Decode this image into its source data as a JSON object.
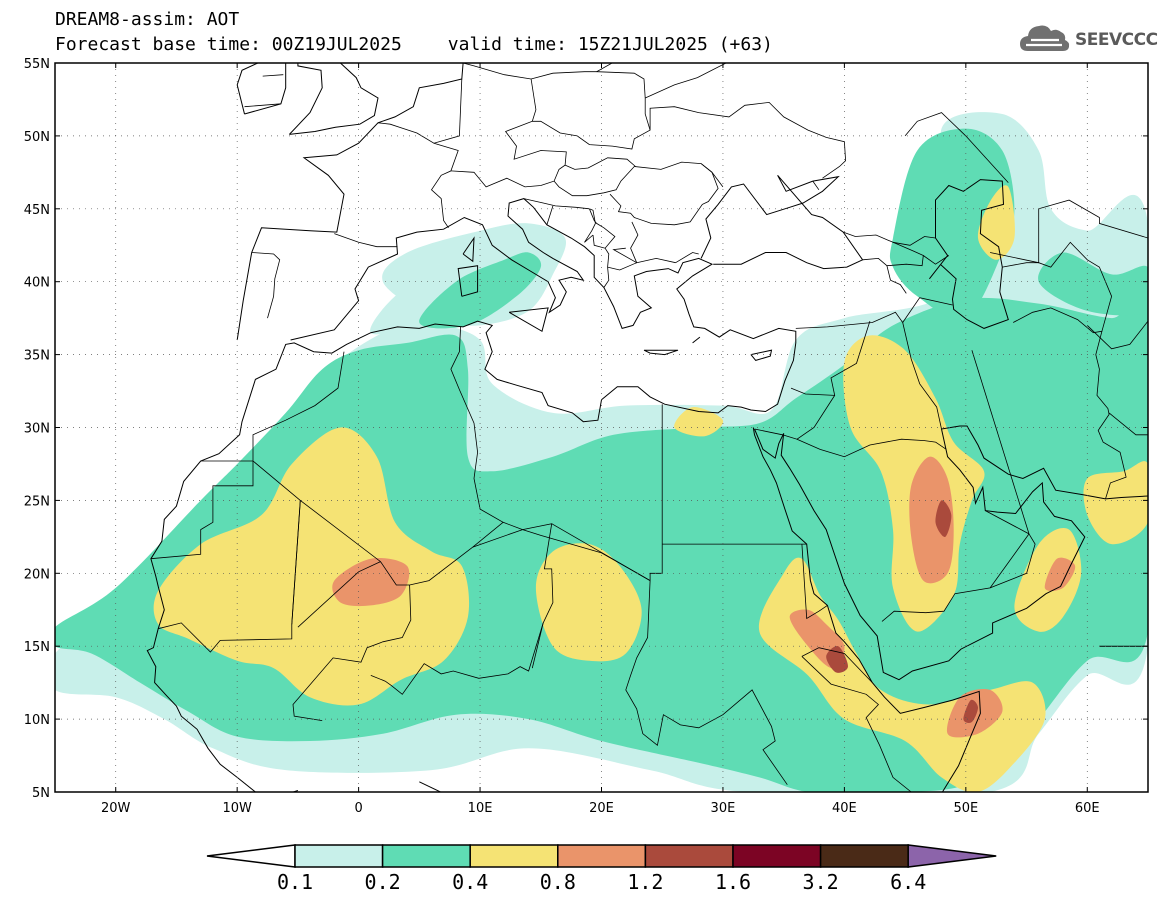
{
  "header": {
    "line1": "DREAM8-assim: AOT",
    "base_time": "Forecast base time: 00Z19JUL2025",
    "valid_time": "valid time: 15Z21JUL2025 (+63)"
  },
  "logo": {
    "icon": "cloud-icon",
    "text": "SEEVCCC"
  },
  "map": {
    "lon_range": [
      -25,
      65
    ],
    "lat_range": [
      5,
      55
    ],
    "lon_ticks": [
      {
        "value": -20,
        "label": "20W"
      },
      {
        "value": -10,
        "label": "10W"
      },
      {
        "value": 0,
        "label": "0"
      },
      {
        "value": 10,
        "label": "10E"
      },
      {
        "value": 20,
        "label": "20E"
      },
      {
        "value": 30,
        "label": "30E"
      },
      {
        "value": 40,
        "label": "40E"
      },
      {
        "value": 50,
        "label": "50E"
      },
      {
        "value": 60,
        "label": "60E"
      }
    ],
    "lat_ticks": [
      {
        "value": 5,
        "label": "5N"
      },
      {
        "value": 10,
        "label": "10N"
      },
      {
        "value": 15,
        "label": "15N"
      },
      {
        "value": 20,
        "label": "20N"
      },
      {
        "value": 25,
        "label": "25N"
      },
      {
        "value": 30,
        "label": "30N"
      },
      {
        "value": 35,
        "label": "35N"
      },
      {
        "value": 40,
        "label": "40N"
      },
      {
        "value": 45,
        "label": "45N"
      },
      {
        "value": 50,
        "label": "50N"
      },
      {
        "value": 55,
        "label": "55N"
      }
    ],
    "gridlines": "dotted"
  },
  "colorbar": {
    "levels": [
      "0.1",
      "0.2",
      "0.4",
      "0.8",
      "1.2",
      "1.6",
      "3.2",
      "6.4"
    ],
    "colors": [
      "#c8f0ea",
      "#5fdcb4",
      "#f5e374",
      "#ea946a",
      "#aa4a3c",
      "#7c0424",
      "#4a2a17",
      "#8c64aa"
    ],
    "under_color": "#ffffff"
  },
  "aot_fields": [
    {
      "level": 0,
      "color": "#c8f0ea",
      "regions": [
        [
          [
            -25,
            14.5
          ],
          [
            -18,
            19
          ],
          [
            -12,
            24.5
          ],
          [
            -6,
            29
          ],
          [
            -3,
            33.5
          ],
          [
            2,
            36.5
          ],
          [
            6,
            37.2
          ],
          [
            10,
            37
          ],
          [
            14,
            38
          ],
          [
            16,
            40.5
          ],
          [
            17,
            43
          ],
          [
            14,
            44
          ],
          [
            10,
            43.5
          ],
          [
            4,
            42
          ],
          [
            2,
            40
          ],
          [
            6,
            37.5
          ],
          [
            10,
            36
          ],
          [
            11,
            33
          ],
          [
            16,
            31
          ],
          [
            22,
            31.5
          ],
          [
            30,
            31.5
          ],
          [
            34,
            31.2
          ],
          [
            36,
            36
          ],
          [
            40,
            37.5
          ],
          [
            48,
            39
          ],
          [
            50,
            44
          ],
          [
            48,
            50.5
          ],
          [
            53,
            51.5
          ],
          [
            56,
            49
          ],
          [
            57,
            45
          ],
          [
            60,
            43.5
          ],
          [
            65,
            44
          ],
          [
            65,
            15
          ],
          [
            60,
            13
          ],
          [
            56,
            9
          ],
          [
            52,
            5
          ],
          [
            32,
            5
          ],
          [
            24,
            6.5
          ],
          [
            14,
            8
          ],
          [
            6,
            6.5
          ],
          [
            -6,
            6.5
          ],
          [
            -12,
            8
          ],
          [
            -16,
            10
          ],
          [
            -20,
            11.5
          ],
          [
            -25,
            12
          ]
        ],
        [
          [
            1,
            36.5
          ],
          [
            3,
            39
          ],
          [
            7,
            41
          ],
          [
            11,
            41
          ],
          [
            10,
            38.5
          ],
          [
            5,
            37
          ]
        ]
      ]
    },
    {
      "level": 1,
      "color": "#5fdcb4",
      "regions": [
        [
          [
            -25,
            16.3
          ],
          [
            -20,
            19
          ],
          [
            -13,
            25
          ],
          [
            -10,
            27.5
          ],
          [
            -6,
            31
          ],
          [
            -3,
            34
          ],
          [
            0,
            35.3
          ],
          [
            4,
            35.8
          ],
          [
            8,
            36.3
          ],
          [
            9,
            34
          ],
          [
            9,
            28
          ],
          [
            11,
            27
          ],
          [
            16,
            28
          ],
          [
            21,
            29.5
          ],
          [
            28,
            30
          ],
          [
            33,
            30.3
          ],
          [
            36,
            32
          ],
          [
            40,
            34.3
          ],
          [
            44,
            37
          ],
          [
            50,
            38.8
          ],
          [
            56,
            38.5
          ],
          [
            62,
            37.5
          ],
          [
            65,
            38
          ],
          [
            65,
            16
          ],
          [
            60,
            14
          ],
          [
            55,
            9
          ],
          [
            50,
            5.5
          ],
          [
            42,
            5
          ],
          [
            37,
            5
          ],
          [
            33,
            6
          ],
          [
            28,
            7
          ],
          [
            20,
            8.5
          ],
          [
            14,
            10
          ],
          [
            8,
            10.3
          ],
          [
            2,
            9
          ],
          [
            -4,
            8.5
          ],
          [
            -10,
            8.8
          ],
          [
            -14,
            10.5
          ],
          [
            -18,
            12.5
          ],
          [
            -22,
            14.5
          ],
          [
            -25,
            15
          ]
        ],
        [
          [
            44,
            43
          ],
          [
            46,
            49
          ],
          [
            50,
            50.5
          ],
          [
            53,
            49
          ],
          [
            54,
            45
          ],
          [
            53,
            42
          ],
          [
            50,
            37.5
          ],
          [
            46,
            39
          ],
          [
            44,
            41
          ]
        ],
        [
          [
            58,
            42
          ],
          [
            62,
            40.5
          ],
          [
            65,
            41
          ],
          [
            65,
            38
          ],
          [
            60,
            38
          ],
          [
            56,
            40
          ]
        ],
        [
          [
            5,
            37.2
          ],
          [
            8,
            40
          ],
          [
            12,
            41.5
          ],
          [
            14,
            42
          ],
          [
            15,
            41
          ],
          [
            13,
            39
          ],
          [
            9,
            37
          ]
        ]
      ]
    },
    {
      "level": 2,
      "color": "#f5e374",
      "regions": [
        [
          [
            -16.5,
            18.8
          ],
          [
            -13,
            22
          ],
          [
            -8,
            24
          ],
          [
            -5.5,
            27.5
          ],
          [
            -1.5,
            30
          ],
          [
            1.5,
            28
          ],
          [
            3,
            23.5
          ],
          [
            6,
            21.5
          ],
          [
            8.5,
            20.5
          ],
          [
            9,
            17
          ],
          [
            7,
            14
          ],
          [
            3.5,
            12.7
          ],
          [
            0,
            11
          ],
          [
            -4,
            11.5
          ],
          [
            -7,
            13.5
          ],
          [
            -10,
            14
          ],
          [
            -14,
            15.5
          ],
          [
            -16.5,
            16.5
          ]
        ],
        [
          [
            14.6,
            19
          ],
          [
            16,
            21.5
          ],
          [
            19,
            22
          ],
          [
            21.5,
            20.5
          ],
          [
            23.3,
            17.5
          ],
          [
            22,
            14.5
          ],
          [
            19,
            14
          ],
          [
            16,
            15
          ]
        ],
        [
          [
            33,
            16
          ],
          [
            35,
            20
          ],
          [
            36.5,
            21
          ],
          [
            38,
            18.5
          ],
          [
            39.5,
            16.8
          ],
          [
            41,
            14.5
          ],
          [
            43,
            12
          ],
          [
            47,
            11
          ],
          [
            52,
            12
          ],
          [
            55.5,
            12.5
          ],
          [
            56.5,
            10
          ],
          [
            54,
            7
          ],
          [
            51,
            5
          ],
          [
            48,
            6
          ],
          [
            45,
            8.5
          ],
          [
            40,
            10
          ],
          [
            37,
            13
          ]
        ],
        [
          [
            40,
            34.5
          ],
          [
            42,
            36.3
          ],
          [
            45,
            35.3
          ],
          [
            47.5,
            32
          ],
          [
            49,
            29
          ],
          [
            51.5,
            27
          ],
          [
            50.5,
            25
          ],
          [
            49.5,
            22
          ],
          [
            49,
            18.5
          ],
          [
            46,
            16
          ],
          [
            44,
            19
          ],
          [
            44,
            23
          ],
          [
            43,
            27
          ],
          [
            40.5,
            30
          ]
        ],
        [
          [
            54,
            17.7
          ],
          [
            56,
            22
          ],
          [
            58.5,
            23
          ],
          [
            59.5,
            20
          ],
          [
            58,
            17
          ],
          [
            56,
            16
          ]
        ],
        [
          [
            51,
            43
          ],
          [
            52,
            45.5
          ],
          [
            53.5,
            46.5
          ],
          [
            54,
            43
          ],
          [
            52.5,
            41.5
          ]
        ],
        [
          [
            26,
            30
          ],
          [
            27.5,
            31.4
          ],
          [
            30,
            30.5
          ],
          [
            28.5,
            29.4
          ]
        ],
        [
          [
            60,
            26.5
          ],
          [
            63,
            27
          ],
          [
            65,
            27.5
          ],
          [
            65,
            23.5
          ],
          [
            62,
            22
          ],
          [
            60,
            24
          ]
        ]
      ]
    },
    {
      "level": 3,
      "color": "#ea946a",
      "regions": [
        [
          [
            -2,
            19.5
          ],
          [
            1,
            21
          ],
          [
            4,
            20.5
          ],
          [
            3.5,
            18.5
          ],
          [
            1,
            17.8
          ],
          [
            -1.5,
            18
          ]
        ],
        [
          [
            45.5,
            26
          ],
          [
            47,
            28
          ],
          [
            48.5,
            26.5
          ],
          [
            49,
            23
          ],
          [
            48.5,
            20
          ],
          [
            46.5,
            19.5
          ],
          [
            45.5,
            22.5
          ]
        ],
        [
          [
            35.5,
            17
          ],
          [
            37,
            17.5
          ],
          [
            38.5,
            16.5
          ],
          [
            40,
            15
          ],
          [
            39,
            13.5
          ],
          [
            37,
            15
          ]
        ],
        [
          [
            48.5,
            9
          ],
          [
            49.5,
            11.5
          ],
          [
            52,
            12
          ],
          [
            53,
            10.5
          ],
          [
            51,
            9
          ]
        ],
        [
          [
            56.5,
            19
          ],
          [
            57.5,
            21
          ],
          [
            59,
            20.5
          ],
          [
            58,
            19
          ]
        ]
      ]
    },
    {
      "level": 4,
      "color": "#aa4a3c",
      "regions": [
        [
          [
            47.5,
            23.5
          ],
          [
            48,
            25
          ],
          [
            48.8,
            24
          ],
          [
            48.3,
            22.5
          ]
        ],
        [
          [
            38.5,
            14.3
          ],
          [
            39.5,
            15
          ],
          [
            40.3,
            13.6
          ],
          [
            39.3,
            13.2
          ]
        ],
        [
          [
            49.8,
            10
          ],
          [
            50.4,
            11.3
          ],
          [
            51,
            10.8
          ],
          [
            50.5,
            9.8
          ]
        ]
      ]
    }
  ]
}
